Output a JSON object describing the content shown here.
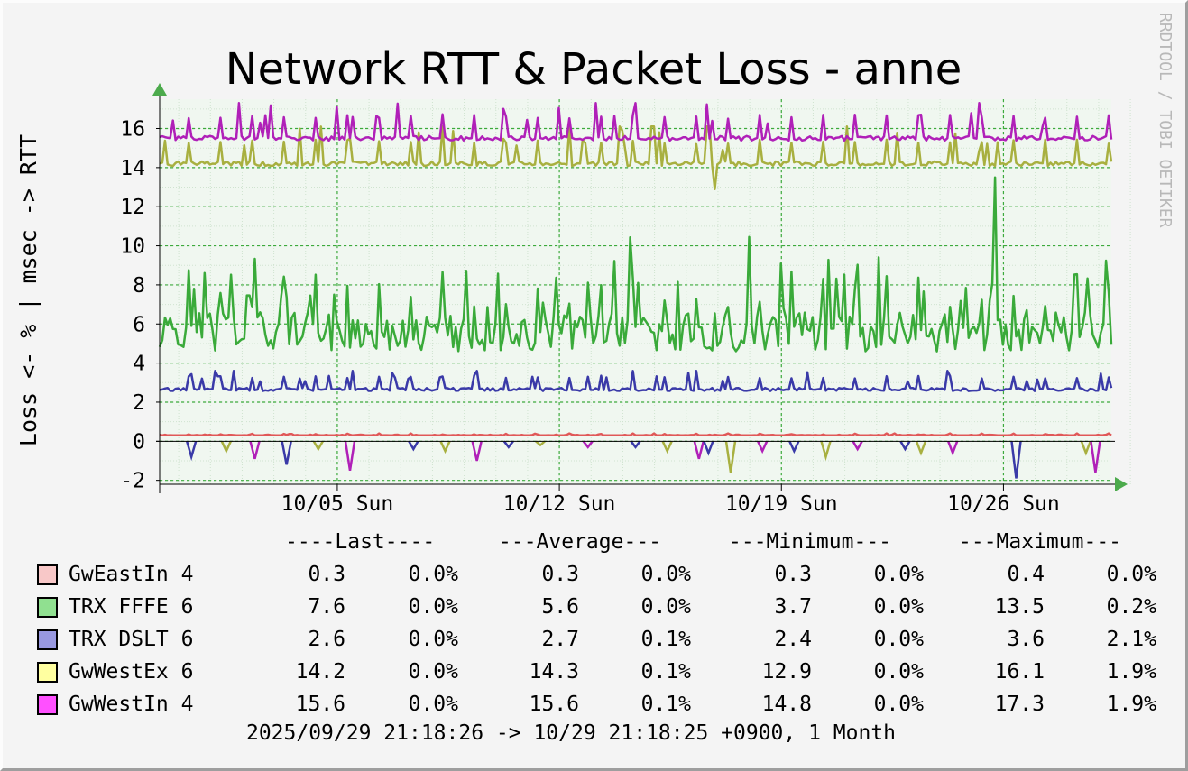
{
  "title": "Network RTT & Packet Loss - anne",
  "watermark": "RRDTOOL / TOBI OETIKER",
  "ylabel": "Loss <- % | msec -> RTT",
  "chart_data": {
    "type": "line",
    "title": "Network RTT & Packet Loss - anne",
    "ylabel": "Loss <- % | msec -> RTT",
    "ylim": [
      -2.2,
      17.5
    ],
    "yticks": [
      -2,
      0,
      2,
      4,
      6,
      8,
      10,
      12,
      14,
      16
    ],
    "x_start": "2025/09/29 21:18:26",
    "x_end": "10/29 21:18:25",
    "xticks": [
      {
        "day": 5.6,
        "label": "10/05 Sun"
      },
      {
        "day": 12.6,
        "label": "10/12 Sun"
      },
      {
        "day": 19.6,
        "label": "10/19 Sun"
      },
      {
        "day": 26.6,
        "label": "10/26 Sun"
      }
    ],
    "grid": true,
    "series": [
      {
        "name": "GwEastIn 4",
        "color": "#e05858",
        "legend_color": "#f8c8c8",
        "stats": [
          "0.3",
          "0.0%",
          "0.3",
          "0.0%",
          "0.3",
          "0.0%",
          "0.4",
          "0.0%"
        ]
      },
      {
        "name": "TRX FFFE 6",
        "color": "#3aaa3a",
        "legend_color": "#90e090",
        "stats": [
          "7.6",
          "0.0%",
          "5.6",
          "0.0%",
          "3.7",
          "0.0%",
          "13.5",
          "0.2%"
        ]
      },
      {
        "name": "TRX DSLT 6",
        "color": "#3a3aa8",
        "legend_color": "#9898e0",
        "stats": [
          "2.6",
          "0.0%",
          "2.7",
          "0.1%",
          "2.4",
          "0.0%",
          "3.6",
          "2.1%"
        ]
      },
      {
        "name": "GwWestEx 6",
        "color": "#a8b040",
        "legend_color": "#ffffa0",
        "stats": [
          "14.2",
          "0.0%",
          "14.3",
          "0.1%",
          "12.9",
          "0.0%",
          "16.1",
          "1.9%"
        ]
      },
      {
        "name": "GwWestIn 4",
        "color": "#b020b8",
        "legend_color": "#ff50ff",
        "stats": [
          "15.6",
          "0.0%",
          "15.6",
          "0.1%",
          "14.8",
          "0.0%",
          "17.3",
          "1.9%"
        ]
      }
    ],
    "loss_dips": [
      {
        "day": 1.0,
        "v": 0.8
      },
      {
        "day": 2.1,
        "v": 0.5
      },
      {
        "day": 3.0,
        "v": 0.9
      },
      {
        "day": 4.0,
        "v": 1.2
      },
      {
        "day": 5.0,
        "v": 0.4
      },
      {
        "day": 6.0,
        "v": 1.5
      },
      {
        "day": 8.0,
        "v": 0.4
      },
      {
        "day": 9.0,
        "v": 0.5
      },
      {
        "day": 10.0,
        "v": 1.0
      },
      {
        "day": 11.0,
        "v": 0.3
      },
      {
        "day": 12.0,
        "v": 0.2
      },
      {
        "day": 13.5,
        "v": 0.3
      },
      {
        "day": 15.0,
        "v": 0.3
      },
      {
        "day": 16.0,
        "v": 0.5
      },
      {
        "day": 17.0,
        "v": 0.9
      },
      {
        "day": 17.3,
        "v": 0.6
      },
      {
        "day": 18.0,
        "v": 1.6
      },
      {
        "day": 19.0,
        "v": 0.5
      },
      {
        "day": 20.0,
        "v": 0.5
      },
      {
        "day": 21.0,
        "v": 0.8
      },
      {
        "day": 22.0,
        "v": 0.4
      },
      {
        "day": 23.5,
        "v": 0.4
      },
      {
        "day": 24.0,
        "v": 0.6
      },
      {
        "day": 25.0,
        "v": 0.6
      },
      {
        "day": 27.0,
        "v": 1.9
      },
      {
        "day": 29.2,
        "v": 0.6
      },
      {
        "day": 29.5,
        "v": 1.6
      }
    ]
  },
  "legend": {
    "headers": [
      "----Last----",
      "---Average---",
      "---Minimum---",
      "---Maximum---"
    ]
  },
  "footer": "2025/09/29 21:18:26 -> 10/29 21:18:25 +0900, 1 Month"
}
